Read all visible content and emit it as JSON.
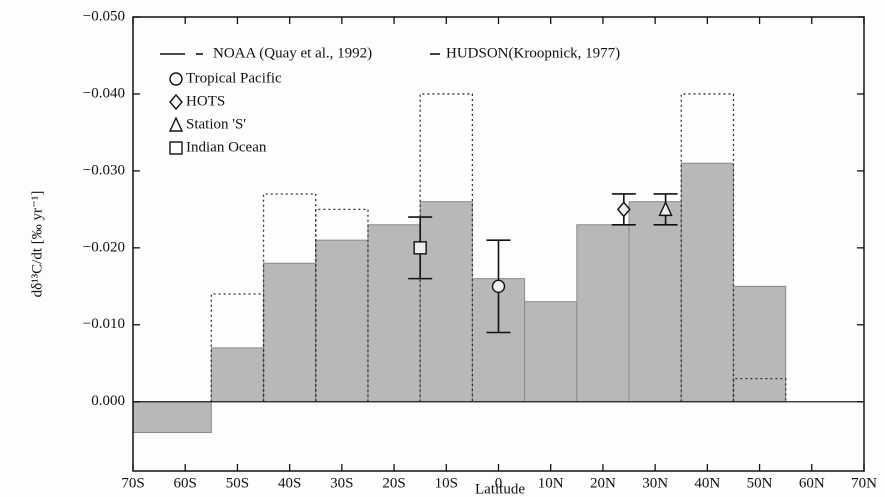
{
  "chart_data": {
    "type": "histogram",
    "xlabel": "Latitude",
    "ylabel": "dδ¹³C/dt [‰ yr⁻¹]",
    "xlim": [
      -70,
      70
    ],
    "ylim": [
      -0.05,
      0.009
    ],
    "xticks": [
      {
        "value": -70,
        "label": "70S"
      },
      {
        "value": -60,
        "label": "60S"
      },
      {
        "value": -50,
        "label": "50S"
      },
      {
        "value": -40,
        "label": "40S"
      },
      {
        "value": -30,
        "label": "30S"
      },
      {
        "value": -20,
        "label": "20S"
      },
      {
        "value": -10,
        "label": "10S"
      },
      0,
      {
        "value": 10,
        "label": "10N"
      },
      {
        "value": 20,
        "label": "20N"
      },
      {
        "value": 30,
        "label": "30N"
      },
      {
        "value": 40,
        "label": "40N"
      },
      {
        "value": 50,
        "label": "50N"
      },
      {
        "value": 60,
        "label": "60N"
      },
      {
        "value": 70,
        "label": "70N"
      }
    ],
    "yticks": [
      {
        "value": -0.05,
        "label": "−0.050"
      },
      {
        "value": -0.04,
        "label": "−0.040"
      },
      {
        "value": -0.03,
        "label": "−0.030"
      },
      {
        "value": -0.02,
        "label": "−0.020"
      },
      {
        "value": -0.01,
        "label": "−0.010"
      },
      {
        "value": 0,
        "label": "0.000"
      }
    ],
    "bins": [
      -70,
      -55,
      -45,
      -35,
      -25,
      -15,
      -5,
      5,
      15,
      25,
      35,
      45,
      55
    ],
    "series": [
      {
        "name": "NOAA (Quay et al., 1992)",
        "color": "#b8b8b8",
        "style": "filled",
        "values": [
          0.004,
          -0.007,
          -0.018,
          -0.021,
          -0.023,
          -0.026,
          -0.016,
          -0.013,
          -0.023,
          -0.026,
          -0.031,
          -0.015
        ]
      },
      {
        "name": "HUDSON(Kroopnick, 1977)",
        "color": "#333333",
        "style": "dotted",
        "values": [
          null,
          -0.014,
          -0.027,
          -0.025,
          null,
          -0.04,
          null,
          null,
          null,
          null,
          -0.04,
          -0.003
        ]
      }
    ],
    "points": [
      {
        "name": "Tropical Pacific",
        "marker": "circle",
        "x": 0,
        "y": -0.015,
        "yerr": 0.006
      },
      {
        "name": "HOTS",
        "marker": "diamond",
        "x": 24,
        "y": -0.025,
        "yerr": 0.002
      },
      {
        "name": "Station 'S'",
        "marker": "triangle",
        "x": 32,
        "y": -0.025,
        "yerr": 0.002
      },
      {
        "name": "Indian Ocean",
        "marker": "square",
        "x": -15,
        "y": -0.02,
        "yerr": 0.004
      }
    ]
  }
}
